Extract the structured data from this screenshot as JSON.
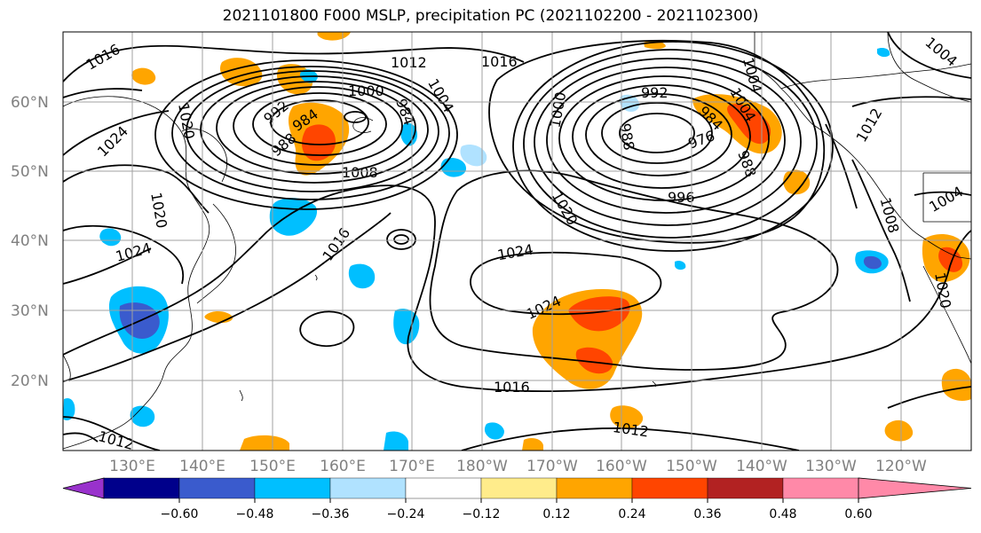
{
  "title": "2021101800 F000 MSLP, precipitation PC (2021102200 - 2021102300)",
  "lat_labels": [
    "60°N",
    "50°N",
    "40°N",
    "30°N",
    "20°N"
  ],
  "lon_labels": [
    "130°E",
    "140°E",
    "150°E",
    "160°E",
    "170°E",
    "180°W",
    "170°W",
    "160°W",
    "150°W",
    "140°W",
    "130°W",
    "120°W"
  ],
  "colorbar": {
    "colors": [
      "#9932cc",
      "#00008b",
      "#3a5bcd",
      "#00bfff",
      "#b0e2ff",
      "#ffffff",
      "#ffec8b",
      "#ffa500",
      "#ff4500",
      "#b22222",
      "#ff89a8"
    ],
    "ticks": [
      "−0.60",
      "−0.48",
      "−0.36",
      "−0.24",
      "−0.12",
      "0.12",
      "0.24",
      "0.36",
      "0.48",
      "0.60"
    ]
  },
  "contour_labels": [
    {
      "text": "1016"
    },
    {
      "text": "1012"
    },
    {
      "text": "1016"
    },
    {
      "text": "1004"
    },
    {
      "text": "1004"
    },
    {
      "text": "1020"
    },
    {
      "text": "1000"
    },
    {
      "text": "1004"
    },
    {
      "text": "992"
    },
    {
      "text": "1004"
    },
    {
      "text": "992"
    },
    {
      "text": "984"
    },
    {
      "text": "984"
    },
    {
      "text": "1000"
    },
    {
      "text": "988"
    },
    {
      "text": "976"
    },
    {
      "text": "984"
    },
    {
      "text": "1012"
    },
    {
      "text": "1024"
    },
    {
      "text": "988"
    },
    {
      "text": "1008"
    },
    {
      "text": "988"
    },
    {
      "text": "996"
    },
    {
      "text": "1004"
    },
    {
      "text": "1020"
    },
    {
      "text": "1020"
    },
    {
      "text": "1008"
    },
    {
      "text": "1024"
    },
    {
      "text": "1016"
    },
    {
      "text": "1024"
    },
    {
      "text": "1024"
    },
    {
      "text": "1016"
    },
    {
      "text": "1012"
    },
    {
      "text": "1012"
    },
    {
      "text": "1020"
    }
  ]
}
